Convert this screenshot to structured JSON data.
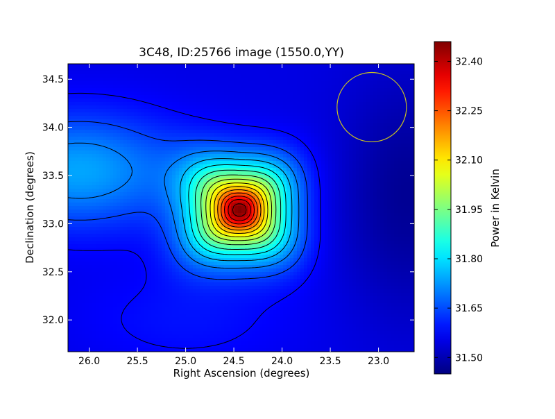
{
  "chart_data": {
    "type": "heatmap",
    "title": "3C48, ID:25766 image (1550.0,YY)",
    "xlabel": "Right Ascension (degrees)",
    "ylabel": "Declination (degrees)",
    "colorbar_label": "Power in Kelvin",
    "colormap": "jet",
    "xlim": [
      26.22,
      22.63
    ],
    "ylim": [
      31.67,
      34.66
    ],
    "x_ticks": [
      26.0,
      25.5,
      25.0,
      24.5,
      24.0,
      23.5,
      23.0
    ],
    "x_tick_labels": [
      "26.0",
      "25.5",
      "25.0",
      "24.5",
      "24.0",
      "23.5",
      "23.0"
    ],
    "y_ticks": [
      32.0,
      32.5,
      33.0,
      33.5,
      34.0,
      34.5
    ],
    "y_tick_labels": [
      "32.0",
      "32.5",
      "33.0",
      "33.5",
      "34.0",
      "34.5"
    ],
    "colorbar_range": [
      31.45,
      32.46
    ],
    "colorbar_ticks": [
      31.5,
      31.65,
      31.8,
      31.95,
      32.1,
      32.25,
      32.4
    ],
    "colorbar_tick_labels": [
      "31.50",
      "31.65",
      "31.80",
      "31.95",
      "32.10",
      "32.25",
      "32.40"
    ],
    "peak": {
      "ra": 24.44,
      "dec": 33.14,
      "value": 32.45
    },
    "background_level": 31.55,
    "contour_levels": [
      31.58,
      31.64,
      31.7,
      31.76,
      31.82,
      31.88,
      31.94,
      32.0,
      32.06,
      32.12,
      32.18,
      32.24,
      32.3,
      32.36,
      32.42
    ],
    "beam_circle": {
      "ra": 23.07,
      "dec": 34.21,
      "radius_deg": 0.36,
      "color": "#c8c020"
    },
    "grid": false,
    "colors": {
      "contour": "#000000",
      "beam": "#c8c020"
    }
  }
}
